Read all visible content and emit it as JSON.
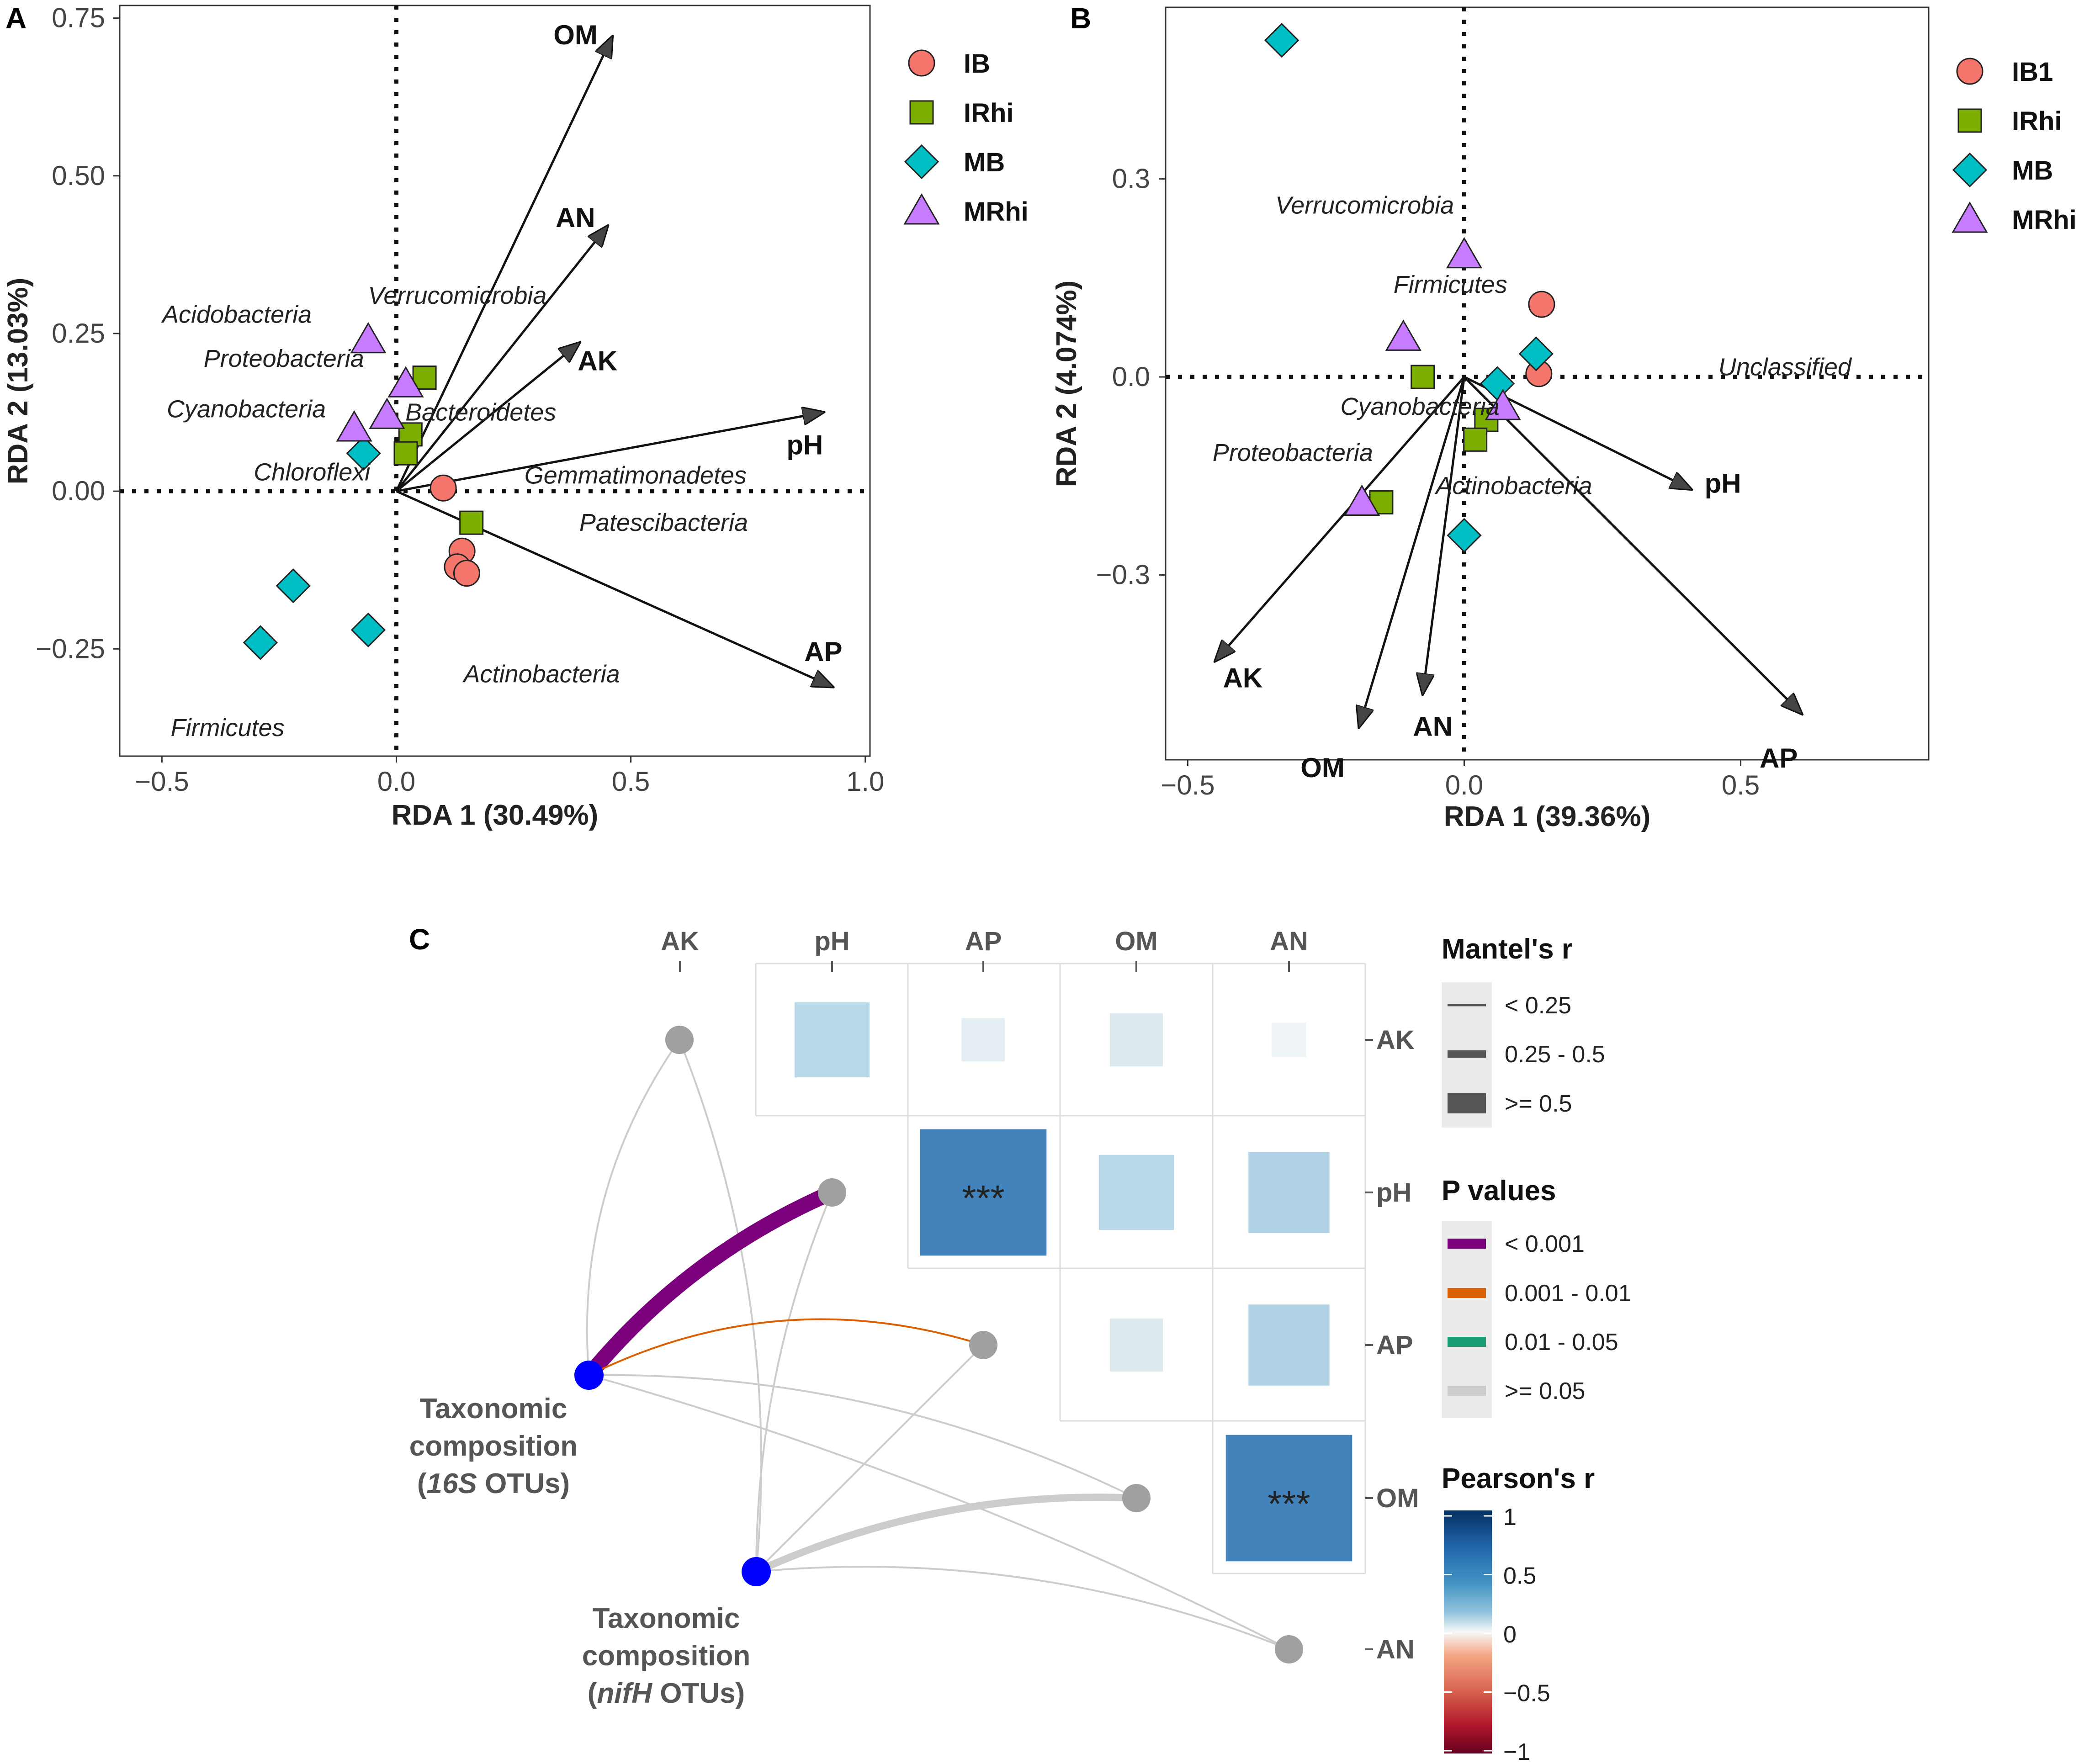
{
  "panels": {
    "a": {
      "letter": "A"
    },
    "b": {
      "letter": "B"
    },
    "c": {
      "letter": "C"
    }
  },
  "chart_data": [
    {
      "type": "scatter",
      "panel": "A",
      "xlabel": "RDA 1 (30.49%)",
      "ylabel": "RDA 2 (13.03%)",
      "xlim": [
        -0.59,
        1.01
      ],
      "ylim": [
        -0.42,
        0.77
      ],
      "xticks": [
        -0.5,
        0.0,
        0.5,
        1.0
      ],
      "xtick_labels": [
        "-0.5",
        "0.0",
        "0.5",
        "1.0"
      ],
      "yticks": [
        -0.25,
        0.0,
        0.25,
        0.5,
        0.75
      ],
      "ytick_labels": [
        "-0.25",
        "0.00",
        "0.25",
        "0.50",
        "0.75"
      ],
      "legend": [
        {
          "name": "IB",
          "shape": "circle",
          "color": "#f4756b"
        },
        {
          "name": "IRhi",
          "shape": "square",
          "color": "#7cae00"
        },
        {
          "name": "MB",
          "shape": "diamond",
          "color": "#00bfc4"
        },
        {
          "name": "MRhi",
          "shape": "triangle",
          "color": "#c77cff"
        }
      ],
      "points": [
        {
          "group": "IB",
          "x": 0.1,
          "y": 0.005
        },
        {
          "group": "IB",
          "x": 0.14,
          "y": -0.095
        },
        {
          "group": "IB",
          "x": 0.13,
          "y": -0.12
        },
        {
          "group": "IB",
          "x": 0.15,
          "y": -0.13
        },
        {
          "group": "IRhi",
          "x": 0.06,
          "y": 0.18
        },
        {
          "group": "IRhi",
          "x": 0.03,
          "y": 0.09
        },
        {
          "group": "IRhi",
          "x": 0.02,
          "y": 0.06
        },
        {
          "group": "IRhi",
          "x": 0.16,
          "y": -0.05
        },
        {
          "group": "MB",
          "x": -0.07,
          "y": 0.06
        },
        {
          "group": "MB",
          "x": -0.22,
          "y": -0.15
        },
        {
          "group": "MB",
          "x": -0.29,
          "y": -0.24
        },
        {
          "group": "MB",
          "x": -0.06,
          "y": -0.22
        },
        {
          "group": "MRhi",
          "x": -0.06,
          "y": 0.24
        },
        {
          "group": "MRhi",
          "x": 0.02,
          "y": 0.17
        },
        {
          "group": "MRhi",
          "x": -0.09,
          "y": 0.1
        },
        {
          "group": "MRhi",
          "x": -0.02,
          "y": 0.12
        }
      ],
      "arrows": [
        {
          "label": "OM",
          "x": 0.46,
          "y": 0.72
        },
        {
          "label": "AN",
          "x": 0.45,
          "y": 0.42
        },
        {
          "label": "AK",
          "x": 0.39,
          "y": 0.235
        },
        {
          "label": "pH",
          "x": 0.91,
          "y": 0.125
        },
        {
          "label": "AP",
          "x": 0.93,
          "y": -0.31
        }
      ],
      "taxa": [
        {
          "name": "Acidobacteria",
          "x": -0.34,
          "y": 0.28
        },
        {
          "name": "Verrucomicrobia",
          "x": 0.13,
          "y": 0.31
        },
        {
          "name": "Proteobacteria",
          "x": -0.24,
          "y": 0.21
        },
        {
          "name": "Bacteroidetes",
          "x": 0.18,
          "y": 0.125
        },
        {
          "name": "Cyanobacteria",
          "x": -0.32,
          "y": 0.13
        },
        {
          "name": "Chloroflexi",
          "x": -0.18,
          "y": 0.03
        },
        {
          "name": "Gemmatimonadetes",
          "x": 0.51,
          "y": 0.025
        },
        {
          "name": "Patescibacteria",
          "x": 0.57,
          "y": -0.05
        },
        {
          "name": "Actinobacteria",
          "x": 0.31,
          "y": -0.29
        },
        {
          "name": "Firmicutes",
          "x": -0.36,
          "y": -0.375
        }
      ]
    },
    {
      "type": "scatter",
      "panel": "B",
      "xlabel": "RDA 1 (39.36%)",
      "ylabel": "RDA 2 (4.074%)",
      "xlim": [
        -0.54,
        0.84
      ],
      "ylim": [
        -0.58,
        0.56
      ],
      "xticks": [
        -0.5,
        0.0,
        0.5
      ],
      "xtick_labels": [
        "-0.5",
        "0.0",
        "0.5"
      ],
      "yticks": [
        -0.3,
        0.0,
        0.3
      ],
      "ytick_labels": [
        "-0.3",
        "0.0",
        "0.3"
      ],
      "legend": [
        {
          "name": "IB1",
          "shape": "circle",
          "color": "#f4756b"
        },
        {
          "name": "IRhi",
          "shape": "square",
          "color": "#7cae00"
        },
        {
          "name": "MB",
          "shape": "diamond",
          "color": "#00bfc4"
        },
        {
          "name": "MRhi",
          "shape": "triangle",
          "color": "#c77cff"
        }
      ],
      "points": [
        {
          "group": "IB1",
          "x": 0.14,
          "y": 0.11
        },
        {
          "group": "IB1",
          "x": 0.135,
          "y": 0.005
        },
        {
          "group": "IRhi",
          "x": -0.075,
          "y": 0.0
        },
        {
          "group": "IRhi",
          "x": 0.04,
          "y": -0.065
        },
        {
          "group": "IRhi",
          "x": 0.02,
          "y": -0.095
        },
        {
          "group": "IRhi",
          "x": -0.15,
          "y": -0.19
        },
        {
          "group": "MB",
          "x": -0.33,
          "y": 0.51
        },
        {
          "group": "MB",
          "x": 0.13,
          "y": 0.035
        },
        {
          "group": "MB",
          "x": 0.06,
          "y": -0.01
        },
        {
          "group": "MB",
          "x": 0.0,
          "y": -0.24
        },
        {
          "group": "MRhi",
          "x": 0.0,
          "y": 0.185
        },
        {
          "group": "MRhi",
          "x": -0.11,
          "y": 0.06
        },
        {
          "group": "MRhi",
          "x": 0.07,
          "y": -0.045
        },
        {
          "group": "MRhi",
          "x": -0.185,
          "y": -0.19
        }
      ],
      "arrows": [
        {
          "label": "pH",
          "x": 0.41,
          "y": -0.17
        },
        {
          "label": "AP",
          "x": 0.61,
          "y": -0.51
        },
        {
          "label": "AK",
          "x": -0.45,
          "y": -0.43
        },
        {
          "label": "OM",
          "x": -0.19,
          "y": -0.53
        },
        {
          "label": "AN",
          "x": -0.075,
          "y": -0.48
        }
      ],
      "taxa": [
        {
          "name": "Verrucomicrobia",
          "x": -0.18,
          "y": 0.26
        },
        {
          "name": "Firmicutes",
          "x": -0.025,
          "y": 0.14
        },
        {
          "name": "Unclassified",
          "x": 0.58,
          "y": 0.015
        },
        {
          "name": "Cyanobacteria",
          "x": -0.08,
          "y": -0.045
        },
        {
          "name": "Proteobacteria",
          "x": -0.31,
          "y": -0.115
        },
        {
          "name": "Actinobacteria",
          "x": 0.09,
          "y": -0.165
        }
      ]
    },
    {
      "type": "heatmap",
      "panel": "C",
      "variables": [
        "AK",
        "pH",
        "AP",
        "OM",
        "AN"
      ],
      "pearson_r": [
        {
          "row": "AK",
          "col": "pH",
          "r": 0.3,
          "sig": ""
        },
        {
          "row": "AK",
          "col": "AP",
          "r": 0.1,
          "sig": ""
        },
        {
          "row": "AK",
          "col": "OM",
          "r": 0.15,
          "sig": ""
        },
        {
          "row": "AK",
          "col": "AN",
          "r": 0.05,
          "sig": ""
        },
        {
          "row": "pH",
          "col": "AP",
          "r": 0.85,
          "sig": "***"
        },
        {
          "row": "pH",
          "col": "OM",
          "r": 0.3,
          "sig": ""
        },
        {
          "row": "pH",
          "col": "AN",
          "r": 0.35,
          "sig": ""
        },
        {
          "row": "AP",
          "col": "OM",
          "r": 0.15,
          "sig": ""
        },
        {
          "row": "AP",
          "col": "AN",
          "r": 0.35,
          "sig": ""
        },
        {
          "row": "OM",
          "col": "AN",
          "r": 0.85,
          "sig": "***"
        }
      ],
      "mantel_links": [
        {
          "from": "16S",
          "to": "AK",
          "mantel": "< 0.25",
          "p": ">= 0.05"
        },
        {
          "from": "16S",
          "to": "pH",
          "mantel": ">= 0.5",
          "p": "< 0.001"
        },
        {
          "from": "16S",
          "to": "AP",
          "mantel": "< 0.25",
          "p": "0.001 - 0.01"
        },
        {
          "from": "16S",
          "to": "OM",
          "mantel": "< 0.25",
          "p": ">= 0.05"
        },
        {
          "from": "16S",
          "to": "AN",
          "mantel": "< 0.25",
          "p": ">= 0.05"
        },
        {
          "from": "nifH",
          "to": "AK",
          "mantel": "< 0.25",
          "p": ">= 0.05"
        },
        {
          "from": "nifH",
          "to": "pH",
          "mantel": "< 0.25",
          "p": ">= 0.05"
        },
        {
          "from": "nifH",
          "to": "AP",
          "mantel": "< 0.25",
          "p": ">= 0.05"
        },
        {
          "from": "nifH",
          "to": "OM",
          "mantel": "0.25 - 0.5",
          "p": ">= 0.05"
        },
        {
          "from": "nifH",
          "to": "AN",
          "mantel": "< 0.25",
          "p": ">= 0.05"
        }
      ],
      "nodes": {
        "n16S": {
          "line1": "Taxonomic",
          "line2": "composition",
          "line3_open": "(",
          "line3_italic": "16S",
          "line3_rest": " OTUs)"
        },
        "nifH": {
          "line1": "Taxonomic",
          "line2": "composition",
          "line3_open": "(",
          "line3_italic": "nifH",
          "line3_rest": " OTUs)"
        }
      },
      "legend": {
        "mantel_title": "Mantel's r",
        "mantel_items": [
          "< 0.25",
          "0.25 - 0.5",
          ">= 0.5"
        ],
        "p_title": "P values",
        "p_items": [
          {
            "label": "< 0.001",
            "color": "#7b007b"
          },
          {
            "label": "0.001 - 0.01",
            "color": "#d95f02"
          },
          {
            "label": "0.01 - 0.05",
            "color": "#1b9e77"
          },
          {
            "label": ">= 0.05",
            "color": "#cccccc"
          }
        ],
        "pearson_title": "Pearson's r",
        "pearson_ticks": [
          "1",
          "0.5",
          "0",
          "−0.5",
          "−1"
        ]
      }
    }
  ]
}
